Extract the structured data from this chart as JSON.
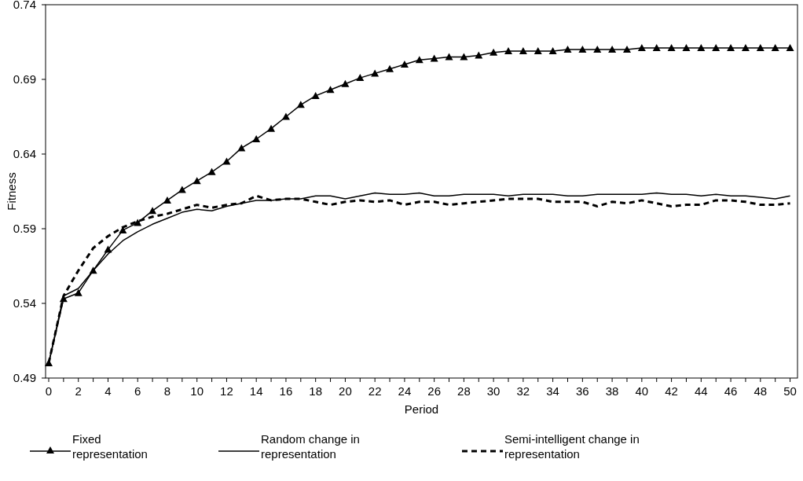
{
  "chart_data": {
    "type": "line",
    "xlabel": "Period",
    "ylabel": "Fitness",
    "x": [
      0,
      1,
      2,
      3,
      4,
      5,
      6,
      7,
      8,
      9,
      10,
      11,
      12,
      13,
      14,
      15,
      16,
      17,
      18,
      19,
      20,
      21,
      22,
      23,
      24,
      25,
      26,
      27,
      28,
      29,
      30,
      31,
      32,
      33,
      34,
      35,
      36,
      37,
      38,
      39,
      40,
      41,
      42,
      43,
      44,
      45,
      46,
      47,
      48,
      49,
      50
    ],
    "xlim": [
      0,
      50.5
    ],
    "xticks": [
      0,
      2,
      4,
      6,
      8,
      10,
      12,
      14,
      16,
      18,
      20,
      22,
      24,
      26,
      28,
      30,
      32,
      34,
      36,
      38,
      40,
      42,
      44,
      46,
      48,
      50
    ],
    "ylim": [
      0.49,
      0.74
    ],
    "yticks": [
      0.49,
      0.54,
      0.59,
      0.64,
      0.69,
      0.74
    ],
    "grid": false,
    "legend": "bottom",
    "series": [
      {
        "name": "Fixed representation",
        "color": "#000000",
        "marker": "triangle",
        "line_style": "solid",
        "values": [
          0.5,
          0.543,
          0.547,
          0.562,
          0.576,
          0.589,
          0.594,
          0.602,
          0.609,
          0.616,
          0.622,
          0.628,
          0.635,
          0.644,
          0.65,
          0.657,
          0.665,
          0.673,
          0.679,
          0.683,
          0.687,
          0.691,
          0.694,
          0.697,
          0.7,
          0.703,
          0.704,
          0.705,
          0.705,
          0.706,
          0.708,
          0.709,
          0.709,
          0.709,
          0.709,
          0.71,
          0.71,
          0.71,
          0.71,
          0.71,
          0.711,
          0.711,
          0.711,
          0.711,
          0.711,
          0.711,
          0.711,
          0.711,
          0.711,
          0.711,
          0.711
        ]
      },
      {
        "name": "Random change in representation",
        "color": "#000000",
        "marker": "none",
        "line_style": "solid",
        "values": [
          0.5,
          0.545,
          0.55,
          0.562,
          0.573,
          0.582,
          0.588,
          0.593,
          0.597,
          0.601,
          0.603,
          0.602,
          0.605,
          0.607,
          0.609,
          0.609,
          0.61,
          0.61,
          0.612,
          0.612,
          0.61,
          0.612,
          0.614,
          0.613,
          0.613,
          0.614,
          0.612,
          0.612,
          0.613,
          0.613,
          0.613,
          0.612,
          0.613,
          0.613,
          0.613,
          0.612,
          0.612,
          0.613,
          0.613,
          0.613,
          0.613,
          0.614,
          0.613,
          0.613,
          0.612,
          0.613,
          0.612,
          0.612,
          0.611,
          0.61,
          0.612
        ]
      },
      {
        "name": "Semi-intelligent change in representation",
        "color": "#000000",
        "marker": "none",
        "line_style": "dashed",
        "values": [
          0.5,
          0.545,
          0.562,
          0.577,
          0.585,
          0.591,
          0.595,
          0.598,
          0.6,
          0.603,
          0.606,
          0.604,
          0.606,
          0.607,
          0.612,
          0.609,
          0.61,
          0.61,
          0.608,
          0.606,
          0.608,
          0.609,
          0.608,
          0.609,
          0.606,
          0.608,
          0.608,
          0.606,
          0.607,
          0.608,
          0.609,
          0.61,
          0.61,
          0.61,
          0.608,
          0.608,
          0.608,
          0.605,
          0.608,
          0.607,
          0.609,
          0.607,
          0.605,
          0.606,
          0.606,
          0.609,
          0.609,
          0.608,
          0.606,
          0.606,
          0.607
        ]
      }
    ]
  }
}
